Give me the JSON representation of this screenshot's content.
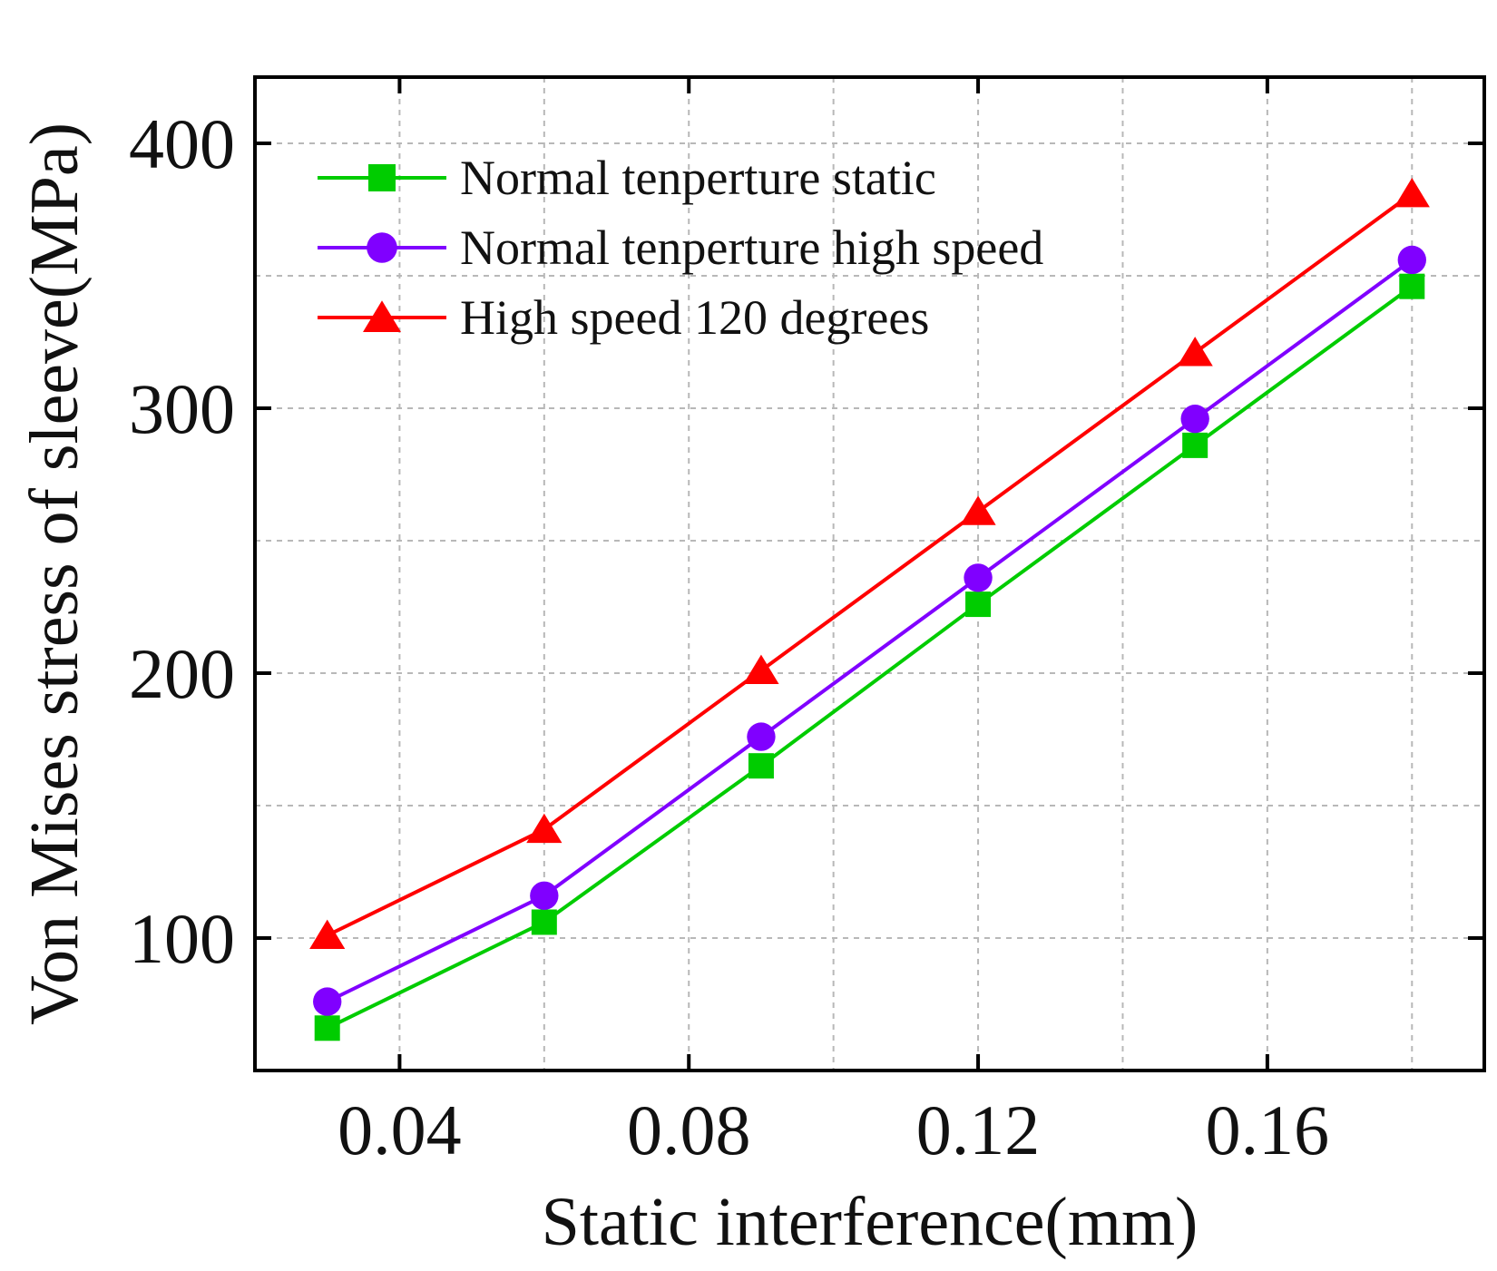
{
  "chart_data": {
    "type": "line",
    "xlabel": "Static interference(mm)",
    "ylabel": "Von Mises stress of sleeve(MPa)",
    "xlim": [
      0.02,
      0.19
    ],
    "ylim": [
      50,
      425
    ],
    "xticks": [
      0.04,
      0.08,
      0.12,
      0.16
    ],
    "xtick_labels": [
      "0.04",
      "0.08",
      "0.12",
      "0.16"
    ],
    "yticks": [
      100,
      200,
      300,
      400
    ],
    "ytick_labels": [
      "100",
      "200",
      "300",
      "400"
    ],
    "grid": true,
    "legend_position": "top-left",
    "x": [
      0.03,
      0.06,
      0.09,
      0.12,
      0.15,
      0.18
    ],
    "series": [
      {
        "name": "Normal tenperture static",
        "color": "#00cc00",
        "marker": "square",
        "values": [
          66,
          106,
          165,
          226,
          286,
          346
        ]
      },
      {
        "name": "Normal tenperture high speed",
        "color": "#8000ff",
        "marker": "circle",
        "values": [
          76,
          116,
          176,
          236,
          296,
          356
        ]
      },
      {
        "name": "High speed 120 degrees",
        "color": "#ff0000",
        "marker": "triangle",
        "values": [
          101,
          141,
          201,
          261,
          321,
          381
        ]
      }
    ]
  }
}
